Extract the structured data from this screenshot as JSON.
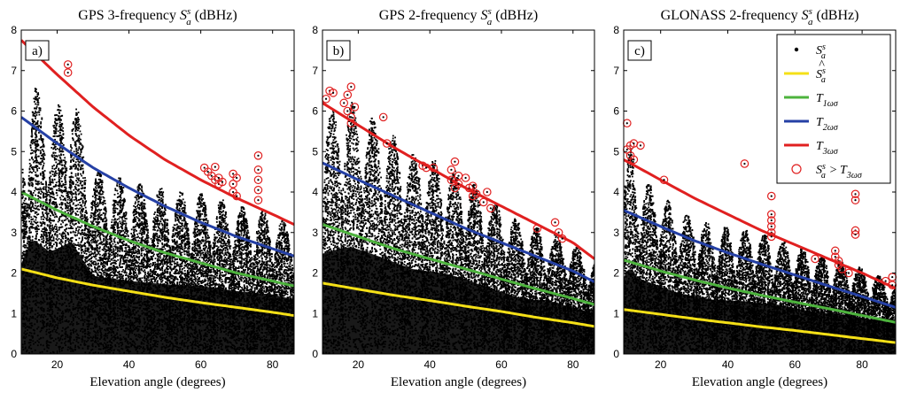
{
  "chart_data": [
    {
      "type": "scatter",
      "panel_label": "a)",
      "title_prefix": "GPS 3-frequency",
      "title_symbol": "S",
      "title_sub": "a",
      "title_sup": "s",
      "title_unit": "(dBHz)",
      "xlabel": "Elevation angle (degrees)",
      "xlim": [
        10,
        86
      ],
      "ylim": [
        0,
        8
      ],
      "xticks": [
        20,
        40,
        60,
        80
      ],
      "yticks": [
        0,
        1,
        2,
        3,
        4,
        5,
        6,
        7,
        8
      ],
      "density_envelope": {
        "x": [
          10,
          13,
          18,
          24,
          30,
          40,
          50,
          60,
          70,
          80,
          86
        ],
        "y": [
          5.3,
          6.8,
          6.0,
          6.6,
          4.6,
          4.3,
          4.1,
          4.0,
          3.7,
          3.5,
          3.2
        ]
      },
      "series": [
        {
          "key": "S_a_hat",
          "curve": {
            "x": [
              10,
              20,
              30,
              40,
              50,
              60,
              70,
              80,
              86
            ],
            "y": [
              2.1,
              1.88,
              1.7,
              1.55,
              1.4,
              1.27,
              1.15,
              1.03,
              0.95
            ]
          }
        },
        {
          "key": "T1",
          "curve": {
            "x": [
              10,
              20,
              30,
              40,
              50,
              60,
              70,
              80,
              86
            ],
            "y": [
              4.0,
              3.55,
              3.15,
              2.8,
              2.5,
              2.25,
              2.0,
              1.8,
              1.68
            ]
          }
        },
        {
          "key": "T2",
          "curve": {
            "x": [
              10,
              20,
              30,
              40,
              50,
              60,
              70,
              80,
              86
            ],
            "y": [
              5.85,
              5.2,
              4.6,
              4.1,
              3.65,
              3.25,
              2.9,
              2.6,
              2.42
            ]
          }
        },
        {
          "key": "T3",
          "curve": {
            "x": [
              10,
              20,
              30,
              40,
              50,
              60,
              70,
              80,
              86
            ],
            "y": [
              7.75,
              6.9,
              6.1,
              5.4,
              4.8,
              4.3,
              3.85,
              3.45,
              3.2
            ]
          }
        }
      ],
      "outliers": {
        "x": [
          23,
          23,
          61,
          62,
          63,
          64,
          64,
          65,
          65,
          66,
          69,
          69,
          69,
          70,
          70,
          76,
          76,
          76,
          76,
          76
        ],
        "y": [
          7.15,
          6.95,
          4.6,
          4.5,
          4.4,
          4.62,
          4.3,
          4.35,
          4.2,
          4.25,
          4.45,
          4.2,
          4.0,
          3.9,
          4.35,
          4.9,
          4.55,
          4.3,
          4.05,
          3.8
        ]
      }
    },
    {
      "type": "scatter",
      "panel_label": "b)",
      "title_prefix": "GPS 2-frequency",
      "title_symbol": "S",
      "title_sub": "a",
      "title_sup": "s",
      "title_unit": "(dBHz)",
      "xlabel": "Elevation angle (degrees)",
      "xlim": [
        10,
        86
      ],
      "ylim": [
        0,
        8
      ],
      "xticks": [
        20,
        40,
        60,
        80
      ],
      "yticks": [
        0,
        1,
        2,
        3,
        4,
        5,
        6,
        7,
        8
      ],
      "density_envelope": {
        "x": [
          10,
          15,
          18,
          25,
          35,
          45,
          50,
          55,
          65,
          75,
          86
        ],
        "y": [
          5.9,
          6.2,
          6.3,
          5.8,
          5.0,
          4.7,
          4.4,
          4.0,
          3.3,
          3.0,
          2.4
        ]
      },
      "series": [
        {
          "key": "S_a_hat",
          "curve": {
            "x": [
              10,
              20,
              30,
              40,
              50,
              60,
              70,
              80,
              86
            ],
            "y": [
              1.75,
              1.6,
              1.45,
              1.32,
              1.18,
              1.05,
              0.9,
              0.77,
              0.68
            ]
          }
        },
        {
          "key": "T1",
          "curve": {
            "x": [
              10,
              20,
              30,
              40,
              50,
              60,
              70,
              80,
              86
            ],
            "y": [
              3.2,
              2.9,
              2.6,
              2.35,
              2.1,
              1.85,
              1.6,
              1.37,
              1.22
            ]
          }
        },
        {
          "key": "T2",
          "curve": {
            "x": [
              10,
              20,
              30,
              40,
              50,
              60,
              70,
              80,
              86
            ],
            "y": [
              4.72,
              4.3,
              3.9,
              3.5,
              3.1,
              2.75,
              2.4,
              2.05,
              1.78
            ]
          }
        },
        {
          "key": "T3",
          "curve": {
            "x": [
              10,
              20,
              30,
              40,
              50,
              60,
              70,
              80,
              86
            ],
            "y": [
              6.2,
              5.65,
              5.1,
              4.6,
              4.1,
              3.65,
              3.2,
              2.75,
              2.35
            ]
          }
        }
      ],
      "outliers": {
        "x": [
          11,
          12,
          13,
          16,
          17,
          17,
          18,
          18,
          18,
          19,
          27,
          28,
          38,
          39,
          41,
          46,
          46,
          47,
          47,
          48,
          48,
          50,
          51,
          52,
          52,
          53,
          55,
          56,
          57,
          70,
          75,
          76,
          77
        ],
        "y": [
          6.3,
          6.5,
          6.45,
          6.2,
          6.4,
          6.0,
          6.6,
          5.85,
          5.7,
          6.1,
          5.85,
          5.2,
          4.65,
          4.6,
          4.6,
          4.55,
          4.3,
          4.75,
          4.1,
          4.4,
          4.2,
          4.35,
          4.1,
          3.9,
          4.15,
          3.95,
          3.75,
          4.0,
          3.6,
          3.1,
          3.25,
          3.0,
          2.85
        ]
      }
    },
    {
      "type": "scatter",
      "panel_label": "c)",
      "title_prefix": "GLONASS 2-frequency",
      "title_symbol": "S",
      "title_sub": "a",
      "title_sup": "s",
      "title_unit": "(dBHz)",
      "xlabel": "Elevation angle (degrees)",
      "xlim": [
        9,
        90
      ],
      "ylim": [
        0,
        8
      ],
      "xticks": [
        20,
        40,
        60,
        80
      ],
      "yticks": [
        0,
        1,
        2,
        3,
        4,
        5,
        6,
        7,
        8
      ],
      "density_envelope": {
        "x": [
          9,
          11,
          13,
          18,
          25,
          35,
          45,
          55,
          65,
          75,
          90
        ],
        "y": [
          4.5,
          5.2,
          4.5,
          4.1,
          3.6,
          3.2,
          3.1,
          2.9,
          2.5,
          2.3,
          1.8
        ]
      },
      "series": [
        {
          "key": "S_a_hat",
          "curve": {
            "x": [
              9,
              20,
              30,
              40,
              50,
              60,
              70,
              80,
              90
            ],
            "y": [
              1.1,
              0.98,
              0.87,
              0.77,
              0.67,
              0.58,
              0.48,
              0.38,
              0.28
            ]
          }
        },
        {
          "key": "T1",
          "curve": {
            "x": [
              9,
              20,
              30,
              40,
              50,
              60,
              70,
              80,
              90
            ],
            "y": [
              2.32,
              2.05,
              1.83,
              1.63,
              1.45,
              1.28,
              1.12,
              0.95,
              0.78
            ]
          }
        },
        {
          "key": "T2",
          "curve": {
            "x": [
              9,
              20,
              30,
              40,
              50,
              60,
              70,
              80,
              90
            ],
            "y": [
              3.55,
              3.15,
              2.8,
              2.5,
              2.22,
              1.95,
              1.68,
              1.42,
              1.15
            ]
          }
        },
        {
          "key": "T3",
          "curve": {
            "x": [
              9,
              20,
              30,
              40,
              50,
              60,
              70,
              80,
              90
            ],
            "y": [
              4.8,
              4.3,
              3.85,
              3.45,
              3.05,
              2.7,
              2.35,
              2.0,
              1.62
            ]
          }
        }
      ],
      "outliers": {
        "x": [
          10,
          10,
          11,
          11,
          12,
          12,
          14,
          21,
          45,
          53,
          53,
          53,
          53,
          53,
          53,
          66,
          72,
          72,
          73,
          73,
          74,
          76,
          78,
          78,
          78,
          78,
          87,
          89,
          89
        ],
        "y": [
          5.7,
          5.05,
          5.15,
          4.9,
          4.8,
          5.2,
          5.15,
          4.3,
          4.7,
          3.9,
          3.45,
          3.3,
          3.15,
          3.0,
          2.9,
          2.35,
          2.55,
          2.4,
          2.3,
          2.2,
          2.1,
          2.0,
          3.95,
          3.8,
          3.05,
          2.95,
          1.8,
          1.9,
          1.7
        ]
      }
    }
  ],
  "legend": {
    "items": [
      {
        "key": "S_a",
        "marker": "dot",
        "symbol": "S",
        "sub": "a",
        "sup": "s",
        "accent": "",
        "rest": ""
      },
      {
        "key": "S_a_hat",
        "marker": "line",
        "symbol": "S",
        "sub": "a",
        "sup": "s",
        "accent": "^",
        "rest": ""
      },
      {
        "key": "T1",
        "marker": "line",
        "symbol": "T",
        "sub": "1ωσ",
        "sup": "",
        "accent": "",
        "rest": ""
      },
      {
        "key": "T2",
        "marker": "line",
        "symbol": "T",
        "sub": "2ωσ",
        "sup": "",
        "accent": "",
        "rest": ""
      },
      {
        "key": "T3",
        "marker": "line",
        "symbol": "T",
        "sub": "3ωσ",
        "sup": "",
        "accent": "",
        "rest": ""
      },
      {
        "key": "outliers",
        "marker": "circle",
        "symbol": "S",
        "sub": "a",
        "sup": "s",
        "accent": "",
        "rest": " > ",
        "symbol2": "T",
        "sub2": "3ωσ"
      }
    ],
    "placement": "top-right of panel c"
  },
  "colors": {
    "S_a": "#000000",
    "S_a_hat": "#f5e017",
    "T1": "#4db33d",
    "T2": "#2540a5",
    "T3": "#e02020",
    "outliers": "#e02020"
  }
}
